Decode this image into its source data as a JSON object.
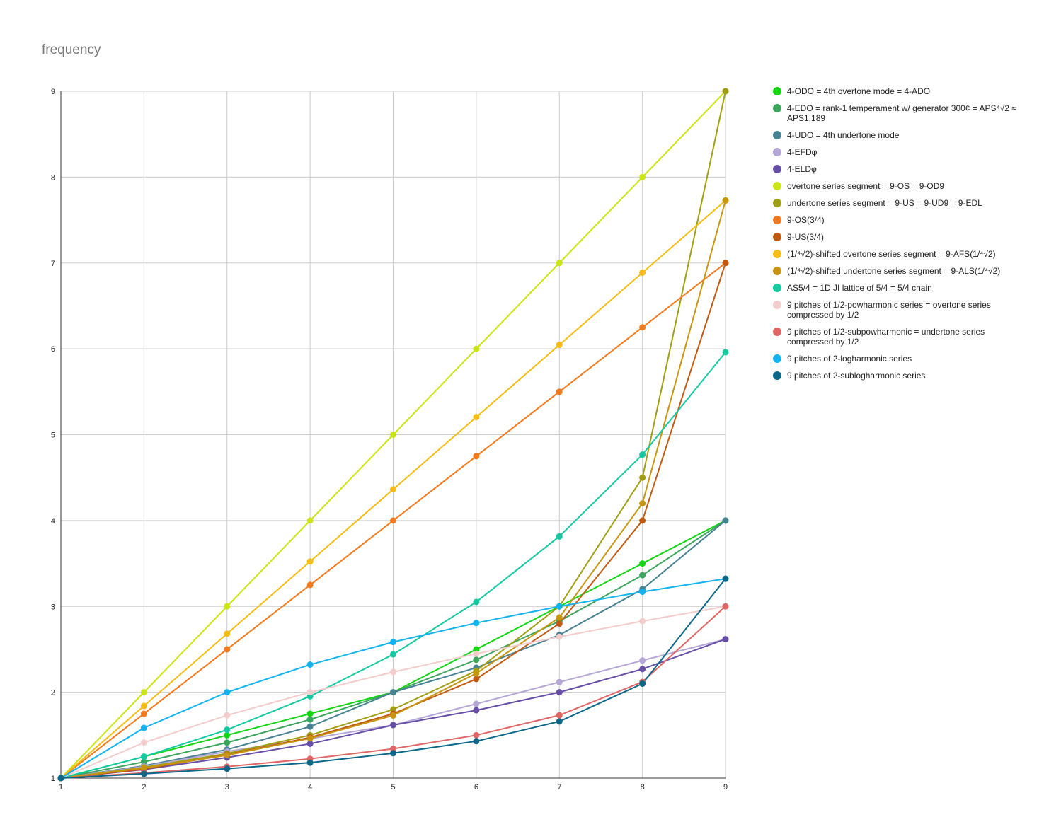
{
  "chart_data": {
    "type": "line",
    "title": "frequency",
    "xlabel": "",
    "ylabel": "",
    "x": [
      1,
      2,
      3,
      4,
      5,
      6,
      7,
      8,
      9
    ],
    "xlim": [
      1,
      9
    ],
    "ylim": [
      1,
      9
    ],
    "xticks": [
      "1",
      "2",
      "3",
      "4",
      "5",
      "6",
      "7",
      "8",
      "9"
    ],
    "yticks": [
      "1",
      "2",
      "3",
      "4",
      "5",
      "6",
      "7",
      "8",
      "9"
    ],
    "grid": true,
    "legend_position": "right",
    "series": [
      {
        "name": "4-ODO = 4th overtone mode = 4-ADO",
        "color": "#11d611",
        "values": [
          1,
          1.25,
          1.5,
          1.75,
          2,
          2.5,
          3,
          3.5,
          4
        ]
      },
      {
        "name": "4-EDO = rank-1 temperament w/ generator 300¢ = APS⁴√2 ≈ APS1.189",
        "color": "#3ba55c",
        "values": [
          1,
          1.189,
          1.414,
          1.682,
          2,
          2.378,
          2.828,
          3.364,
          4
        ]
      },
      {
        "name": "4-UDO = 4th undertone mode",
        "color": "#468291",
        "values": [
          1,
          1.143,
          1.333,
          1.6,
          2,
          2.286,
          2.667,
          3.2,
          4
        ]
      },
      {
        "name": "4-EFDφ",
        "color": "#b4a7d6",
        "values": [
          1,
          1.135,
          1.31,
          1.46,
          1.618,
          1.865,
          2.118,
          2.37,
          2.618
        ]
      },
      {
        "name": "4-ELDφ",
        "color": "#674ea7",
        "values": [
          1,
          1.1,
          1.24,
          1.4,
          1.618,
          1.79,
          2,
          2.27,
          2.618
        ]
      },
      {
        "name": "overtone series segment = 9-OS = 9-OD9",
        "color": "#cbe512",
        "values": [
          1,
          2,
          3,
          4,
          5,
          6,
          7,
          8,
          9
        ]
      },
      {
        "name": "undertone series segment = 9-US = 9-UD9 = 9-EDL",
        "color": "#a09e11",
        "values": [
          1,
          1.125,
          1.286,
          1.5,
          1.8,
          2.25,
          3,
          4.5,
          9
        ]
      },
      {
        "name": "9-OS(3/4)",
        "color": "#f4791c",
        "values": [
          1,
          1.75,
          2.5,
          3.25,
          4,
          4.75,
          5.5,
          6.25,
          7
        ]
      },
      {
        "name": "9-US(3/4)",
        "color": "#c1590f",
        "values": [
          1,
          1.105,
          1.273,
          1.474,
          1.75,
          2.154,
          2.8,
          4,
          7
        ]
      },
      {
        "name": "(1/⁴√2)-shifted overtone series segment = 9-AFS(1/⁴√2)",
        "color": "#f5bc12",
        "values": [
          1,
          1.841,
          2.682,
          3.523,
          4.364,
          5.205,
          6.046,
          6.887,
          7.728
        ]
      },
      {
        "name": "(1/⁴√2)-shifted undertone series segment = 9-ALS(1/⁴√2)",
        "color": "#c7950f",
        "values": [
          1,
          1.117,
          1.267,
          1.463,
          1.73,
          2.22,
          2.87,
          4.2,
          7.728
        ]
      },
      {
        "name": "AS5/4 = 1D JI lattice of 5/4 = 5/4 chain",
        "color": "#12c9a2",
        "values": [
          1,
          1.25,
          1.563,
          1.953,
          2.441,
          3.052,
          3.815,
          4.768,
          5.96
        ]
      },
      {
        "name": "9 pitches of 1/2-powharmonic series = overtone series compressed by 1/2",
        "color": "#f3cccc",
        "values": [
          1,
          1.414,
          1.732,
          2,
          2.236,
          2.449,
          2.646,
          2.828,
          3
        ]
      },
      {
        "name": "9 pitches of 1/2-subpowharmonic = undertone series compressed by 1/2",
        "color": "#e06666",
        "values": [
          1,
          1.061,
          1.134,
          1.225,
          1.342,
          1.5,
          1.732,
          2.121,
          3
        ]
      },
      {
        "name": "9 pitches of 2-logharmonic series",
        "color": "#12b3ef",
        "values": [
          1,
          1.585,
          2,
          2.322,
          2.585,
          2.807,
          3,
          3.17,
          3.322
        ]
      },
      {
        "name": "9 pitches of 2-sublogharmonic series",
        "color": "#0b6787",
        "values": [
          1,
          1.05,
          1.11,
          1.18,
          1.29,
          1.43,
          1.66,
          2.1,
          3.322
        ]
      }
    ]
  }
}
